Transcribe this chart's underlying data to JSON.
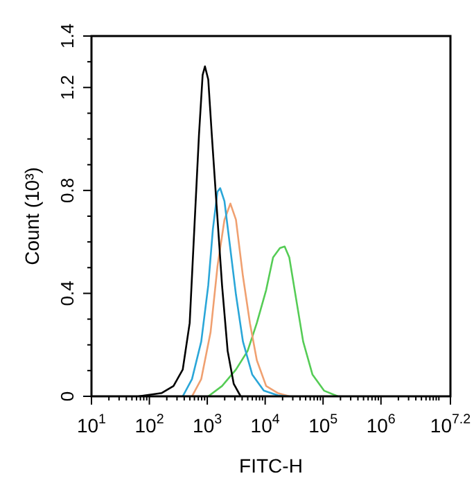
{
  "chart_data": {
    "type": "line",
    "xlabel": "FITC-H",
    "ylabel": "Count (10³)",
    "log": "x",
    "grid": false,
    "legend": false,
    "marker": "none",
    "line_style": "solid",
    "xlim": [
      10,
      15848932
    ],
    "ylim": [
      0,
      1.4
    ],
    "xticks": [
      {
        "value": 10,
        "label": "10$^{1}$"
      },
      {
        "value": 20,
        "label": null
      },
      {
        "value": 30,
        "label": null
      },
      {
        "value": 40,
        "label": null
      },
      {
        "value": 50,
        "label": null
      },
      {
        "value": 60,
        "label": null
      },
      {
        "value": 70,
        "label": null
      },
      {
        "value": 80,
        "label": null
      },
      {
        "value": 90,
        "label": null
      },
      {
        "value": 100,
        "label": "10$^{2}$"
      },
      {
        "value": 200,
        "label": null
      },
      {
        "value": 300,
        "label": null
      },
      {
        "value": 400,
        "label": null
      },
      {
        "value": 500,
        "label": null
      },
      {
        "value": 600,
        "label": null
      },
      {
        "value": 700,
        "label": null
      },
      {
        "value": 800,
        "label": null
      },
      {
        "value": 900,
        "label": null
      },
      {
        "value": 1000,
        "label": "10$^{3}$"
      },
      {
        "value": 2000,
        "label": null
      },
      {
        "value": 3000,
        "label": null
      },
      {
        "value": 4000,
        "label": null
      },
      {
        "value": 5000,
        "label": null
      },
      {
        "value": 6000,
        "label": null
      },
      {
        "value": 7000,
        "label": null
      },
      {
        "value": 8000,
        "label": null
      },
      {
        "value": 9000,
        "label": null
      },
      {
        "value": 10000,
        "label": "10$^{4}$"
      },
      {
        "value": 20000,
        "label": null
      },
      {
        "value": 30000,
        "label": null
      },
      {
        "value": 40000,
        "label": null
      },
      {
        "value": 50000,
        "label": null
      },
      {
        "value": 60000,
        "label": null
      },
      {
        "value": 70000,
        "label": null
      },
      {
        "value": 80000,
        "label": null
      },
      {
        "value": 90000,
        "label": null
      },
      {
        "value": 100000,
        "label": "10$^{5}$"
      },
      {
        "value": 200000,
        "label": null
      },
      {
        "value": 300000,
        "label": null
      },
      {
        "value": 400000,
        "label": null
      },
      {
        "value": 500000,
        "label": null
      },
      {
        "value": 600000,
        "label": null
      },
      {
        "value": 700000,
        "label": null
      },
      {
        "value": 800000,
        "label": null
      },
      {
        "value": 900000,
        "label": null
      },
      {
        "value": 1000000,
        "label": "10$^{6}$"
      },
      {
        "value": 2000000,
        "label": null
      },
      {
        "value": 3000000,
        "label": null
      },
      {
        "value": 4000000,
        "label": null
      },
      {
        "value": 5000000,
        "label": null
      },
      {
        "value": 6000000,
        "label": null
      },
      {
        "value": 7000000,
        "label": null
      },
      {
        "value": 8000000,
        "label": null
      },
      {
        "value": 9000000,
        "label": null
      },
      {
        "value": 10000000,
        "label": null
      },
      {
        "value": 15848932,
        "label": "10$^{7.2}$"
      }
    ],
    "yticks": [
      0,
      {
        "value": 0.1,
        "label": null
      },
      {
        "value": 0.2,
        "label": null
      },
      {
        "value": 0.3,
        "label": null
      },
      0.4,
      {
        "value": 0.5,
        "label": null
      },
      {
        "value": 0.6,
        "label": null
      },
      {
        "value": 0.7,
        "label": null
      },
      0.8,
      {
        "value": 0.9,
        "label": null
      },
      {
        "value": 1.0,
        "label": null
      },
      {
        "value": 1.1,
        "label": null
      },
      1.2,
      {
        "value": 1.3,
        "label": null
      },
      1.4
    ],
    "series": [
      {
        "color": "#000000",
        "x": [
          65,
          164,
          261,
          377,
          497,
          597,
          718,
          832,
          912,
          1040,
          1200,
          1450,
          1800,
          2250,
          2860,
          3770
        ],
        "values": [
          0,
          0.013,
          0.04,
          0.104,
          0.285,
          0.649,
          1.013,
          1.249,
          1.282,
          1.231,
          1.013,
          0.74,
          0.431,
          0.176,
          0.049,
          0
        ]
      },
      {
        "color": "#2aa6d8",
        "x": [
          377,
          545,
          787,
          1040,
          1250,
          1500,
          1670,
          1980,
          2380,
          3130,
          4130,
          5970,
          9460,
          16400,
          23800
        ],
        "values": [
          0,
          0.067,
          0.213,
          0.431,
          0.649,
          0.795,
          0.809,
          0.758,
          0.613,
          0.395,
          0.213,
          0.085,
          0.022,
          0.004,
          0
        ]
      },
      {
        "color": "#f0a070",
        "x": [
          545,
          787,
          1140,
          1500,
          1980,
          2510,
          3130,
          4130,
          5450,
          7180,
          10400,
          16400,
          26100
        ],
        "values": [
          0,
          0.067,
          0.249,
          0.504,
          0.686,
          0.749,
          0.686,
          0.467,
          0.285,
          0.14,
          0.04,
          0.013,
          0
        ]
      },
      {
        "color": "#55cc55",
        "x": [
          1040,
          1800,
          3130,
          4970,
          7180,
          10400,
          13700,
          18000,
          21700,
          26100,
          34400,
          45300,
          65500,
          104000,
          180000
        ],
        "values": [
          0,
          0.04,
          0.104,
          0.176,
          0.285,
          0.413,
          0.54,
          0.576,
          0.582,
          0.54,
          0.376,
          0.213,
          0.085,
          0.022,
          0
        ]
      }
    ]
  }
}
